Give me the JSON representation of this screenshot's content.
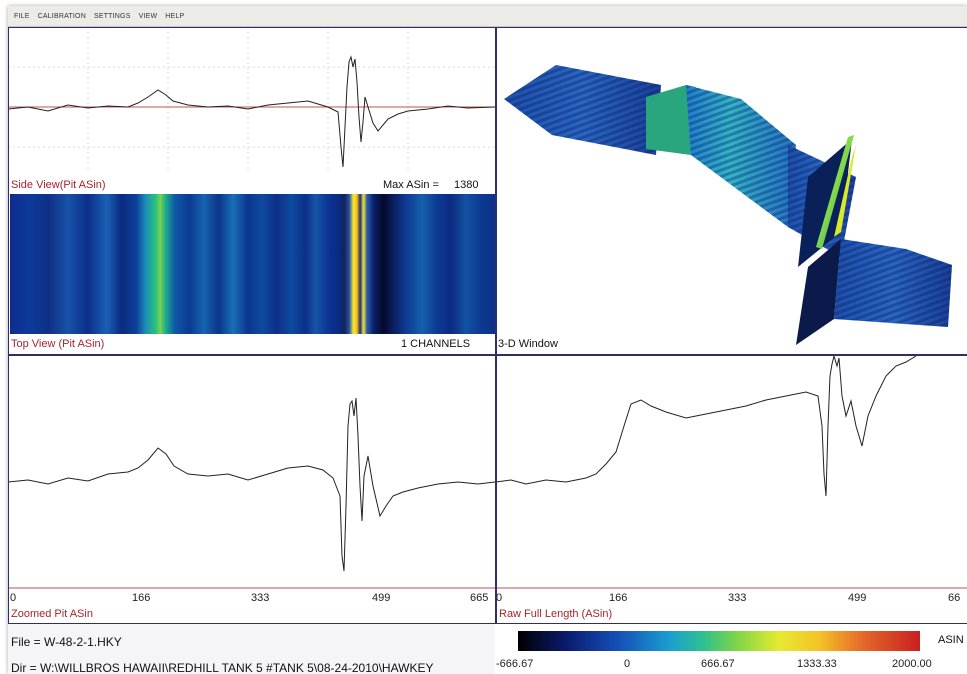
{
  "menu": [
    "FILE",
    "CALIBRATION",
    "SETTINGS",
    "VIEW",
    "HELP"
  ],
  "side_view": {
    "label": "Side View(Pit ASin)",
    "max_label": "Max ASin =",
    "max_value": "1380"
  },
  "top_view": {
    "label": "Top View (Pit ASin)",
    "channels": "1 CHANNELS"
  },
  "window_3d": {
    "label": "3-D Window"
  },
  "zoomed": {
    "label": "Zoomed Pit ASin",
    "ticks": [
      "0",
      "166",
      "333",
      "499",
      "665"
    ]
  },
  "raw": {
    "label": "Raw Full Length (ASin)",
    "ticks": [
      "0",
      "166",
      "333",
      "499",
      "66"
    ]
  },
  "file": {
    "label": "File = W-48-2-1.HKY",
    "dir": "Dir = W:\\WILLBROS HAWAII\\REDHILL TANK 5 #TANK 5\\08-24-2010\\HAWKEY"
  },
  "colorbar": {
    "unit": "ASIN",
    "ticks": [
      "-666.67",
      "0",
      "666.67",
      "1333.33",
      "2000.00"
    ]
  },
  "colors": {
    "trace": "#222222",
    "baseline": "#c0504d",
    "frame": "#2e2e6e",
    "label_red": "#a4262c"
  }
}
